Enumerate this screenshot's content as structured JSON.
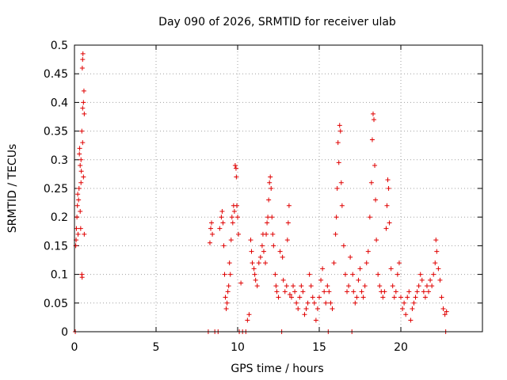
{
  "chart_data": {
    "type": "scatter",
    "title": "Day 090 of 2026, SRMTID for receiver ulab",
    "xlabel": "GPS time / hours",
    "ylabel": "SRMTID / TECUs",
    "xlim": [
      0,
      25
    ],
    "ylim": [
      0,
      0.5
    ],
    "x_ticks": [
      0,
      5,
      10,
      15,
      20
    ],
    "x_tick_labels": [
      "0",
      "5",
      "10",
      "15",
      "20"
    ],
    "y_ticks": [
      0,
      0.05,
      0.1,
      0.15,
      0.2,
      0.25,
      0.3,
      0.35,
      0.4,
      0.45,
      0.5
    ],
    "y_tick_labels": [
      "0",
      "0.05",
      "0.1",
      "0.15",
      "0.2",
      "0.25",
      "0.3",
      "0.35",
      "0.4",
      "0.45",
      "0.5"
    ],
    "grid": true,
    "marker": "+",
    "series": [
      {
        "name": "SRMTID",
        "color": "#e00000",
        "points": [
          [
            0.05,
            0
          ],
          [
            0.08,
            0.15
          ],
          [
            0.1,
            0.16
          ],
          [
            0.12,
            0.18
          ],
          [
            0.15,
            0.2
          ],
          [
            0.18,
            0.22
          ],
          [
            0.2,
            0.24
          ],
          [
            0.22,
            0.17
          ],
          [
            0.25,
            0.23
          ],
          [
            0.28,
            0.25
          ],
          [
            0.3,
            0.31
          ],
          [
            0.32,
            0.32
          ],
          [
            0.35,
            0.29
          ],
          [
            0.38,
            0.18
          ],
          [
            0.4,
            0.26
          ],
          [
            0.42,
            0.28
          ],
          [
            0.45,
            0.1
          ],
          [
            0.47,
            0.095
          ],
          [
            0.48,
            0.46
          ],
          [
            0.5,
            0.475
          ],
          [
            0.52,
            0.485
          ],
          [
            0.5,
            0.39
          ],
          [
            0.55,
            0.4
          ],
          [
            0.58,
            0.42
          ],
          [
            0.6,
            0.38
          ],
          [
            0.45,
            0.35
          ],
          [
            0.5,
            0.33
          ],
          [
            0.4,
            0.3
          ],
          [
            0.35,
            0.21
          ],
          [
            0.55,
            0.27
          ],
          [
            0.6,
            0.17
          ],
          [
            8.2,
            0
          ],
          [
            8.3,
            0.155
          ],
          [
            8.35,
            0.18
          ],
          [
            8.4,
            0.19
          ],
          [
            8.45,
            0.17
          ],
          [
            8.6,
            0
          ],
          [
            8.8,
            0
          ],
          [
            8.9,
            0.18
          ],
          [
            9.0,
            0.2
          ],
          [
            9.05,
            0.21
          ],
          [
            9.1,
            0.19
          ],
          [
            9.15,
            0.15
          ],
          [
            9.2,
            0.1
          ],
          [
            9.25,
            0.06
          ],
          [
            9.3,
            0.04
          ],
          [
            9.35,
            0.05
          ],
          [
            9.4,
            0.07
          ],
          [
            9.45,
            0.08
          ],
          [
            9.5,
            0.12
          ],
          [
            9.55,
            0.1
          ],
          [
            9.6,
            0.16
          ],
          [
            9.65,
            0.2
          ],
          [
            9.7,
            0.19
          ],
          [
            9.75,
            0.22
          ],
          [
            9.8,
            0.21
          ],
          [
            9.85,
            0.29
          ],
          [
            9.9,
            0.285
          ],
          [
            9.92,
            0.27
          ],
          [
            9.95,
            0.22
          ],
          [
            10.0,
            0.2
          ],
          [
            10.05,
            0.17
          ],
          [
            10.1,
            0
          ],
          [
            10.2,
            0.085
          ],
          [
            10.3,
            0
          ],
          [
            10.5,
            0
          ],
          [
            10.6,
            0.02
          ],
          [
            10.7,
            0.03
          ],
          [
            10.8,
            0.16
          ],
          [
            10.85,
            0.14
          ],
          [
            10.9,
            0.12
          ],
          [
            11.0,
            0.11
          ],
          [
            11.05,
            0.1
          ],
          [
            11.1,
            0.09
          ],
          [
            11.2,
            0.08
          ],
          [
            11.3,
            0.12
          ],
          [
            11.4,
            0.13
          ],
          [
            11.5,
            0.15
          ],
          [
            11.55,
            0.17
          ],
          [
            11.6,
            0.14
          ],
          [
            11.7,
            0.12
          ],
          [
            11.75,
            0.17
          ],
          [
            11.8,
            0.19
          ],
          [
            11.85,
            0.2
          ],
          [
            11.9,
            0.23
          ],
          [
            11.95,
            0.26
          ],
          [
            12.0,
            0.27
          ],
          [
            12.05,
            0.25
          ],
          [
            12.1,
            0.2
          ],
          [
            12.15,
            0.17
          ],
          [
            12.2,
            0.15
          ],
          [
            12.3,
            0.1
          ],
          [
            12.35,
            0.08
          ],
          [
            12.4,
            0.07
          ],
          [
            12.5,
            0.06
          ],
          [
            12.6,
            0.14
          ],
          [
            12.7,
            0
          ],
          [
            12.75,
            0.13
          ],
          [
            12.8,
            0.09
          ],
          [
            12.9,
            0.07
          ],
          [
            13.0,
            0.08
          ],
          [
            13.05,
            0.16
          ],
          [
            13.1,
            0.19
          ],
          [
            13.15,
            0.22
          ],
          [
            13.2,
            0.065
          ],
          [
            13.3,
            0.06
          ],
          [
            13.4,
            0.08
          ],
          [
            13.5,
            0.07
          ],
          [
            13.6,
            0.05
          ],
          [
            13.7,
            0.04
          ],
          [
            13.8,
            0.06
          ],
          [
            13.9,
            0.08
          ],
          [
            14.0,
            0.07
          ],
          [
            14.1,
            0.03
          ],
          [
            14.2,
            0.04
          ],
          [
            14.3,
            0.05
          ],
          [
            14.4,
            0.1
          ],
          [
            14.5,
            0.08
          ],
          [
            14.6,
            0.06
          ],
          [
            14.7,
            0.05
          ],
          [
            14.8,
            0.02
          ],
          [
            14.9,
            0.04
          ],
          [
            15.0,
            0.06
          ],
          [
            15.1,
            0.09
          ],
          [
            15.2,
            0.11
          ],
          [
            15.3,
            0.07
          ],
          [
            15.4,
            0.05
          ],
          [
            15.5,
            0.08
          ],
          [
            15.55,
            0
          ],
          [
            15.6,
            0.07
          ],
          [
            15.7,
            0.05
          ],
          [
            15.8,
            0.04
          ],
          [
            15.9,
            0.12
          ],
          [
            16.0,
            0.17
          ],
          [
            16.05,
            0.2
          ],
          [
            16.1,
            0.25
          ],
          [
            16.15,
            0.33
          ],
          [
            16.2,
            0.295
          ],
          [
            16.25,
            0.36
          ],
          [
            16.3,
            0.35
          ],
          [
            16.35,
            0.26
          ],
          [
            16.4,
            0.22
          ],
          [
            16.5,
            0.15
          ],
          [
            16.6,
            0.1
          ],
          [
            16.7,
            0.07
          ],
          [
            16.8,
            0.08
          ],
          [
            16.9,
            0.13
          ],
          [
            17.0,
            0
          ],
          [
            17.05,
            0.1
          ],
          [
            17.1,
            0.07
          ],
          [
            17.2,
            0.05
          ],
          [
            17.3,
            0.06
          ],
          [
            17.4,
            0.09
          ],
          [
            17.5,
            0.11
          ],
          [
            17.6,
            0.07
          ],
          [
            17.7,
            0.06
          ],
          [
            17.8,
            0.08
          ],
          [
            17.9,
            0.12
          ],
          [
            18.0,
            0.14
          ],
          [
            18.1,
            0.2
          ],
          [
            18.2,
            0.26
          ],
          [
            18.25,
            0.335
          ],
          [
            18.3,
            0.38
          ],
          [
            18.35,
            0.37
          ],
          [
            18.4,
            0.29
          ],
          [
            18.45,
            0.23
          ],
          [
            18.5,
            0.16
          ],
          [
            18.6,
            0.1
          ],
          [
            18.7,
            0.08
          ],
          [
            18.8,
            0.07
          ],
          [
            18.9,
            0.06
          ],
          [
            19.0,
            0.07
          ],
          [
            19.1,
            0.18
          ],
          [
            19.15,
            0.22
          ],
          [
            19.2,
            0.265
          ],
          [
            19.25,
            0.25
          ],
          [
            19.3,
            0.19
          ],
          [
            19.4,
            0.11
          ],
          [
            19.5,
            0.08
          ],
          [
            19.6,
            0.06
          ],
          [
            19.7,
            0.07
          ],
          [
            19.8,
            0.1
          ],
          [
            19.9,
            0.12
          ],
          [
            20.0,
            0.06
          ],
          [
            20.1,
            0.04
          ],
          [
            20.2,
            0.05
          ],
          [
            20.3,
            0.03
          ],
          [
            20.4,
            0.06
          ],
          [
            20.5,
            0.07
          ],
          [
            20.6,
            0.02
          ],
          [
            20.7,
            0.04
          ],
          [
            20.8,
            0.05
          ],
          [
            20.9,
            0.06
          ],
          [
            21.0,
            0.07
          ],
          [
            21.1,
            0.08
          ],
          [
            21.2,
            0.1
          ],
          [
            21.3,
            0.09
          ],
          [
            21.4,
            0.07
          ],
          [
            21.5,
            0.06
          ],
          [
            21.6,
            0.08
          ],
          [
            21.7,
            0.07
          ],
          [
            21.8,
            0.09
          ],
          [
            21.9,
            0.08
          ],
          [
            22.0,
            0.1
          ],
          [
            22.1,
            0.12
          ],
          [
            22.15,
            0.16
          ],
          [
            22.2,
            0.14
          ],
          [
            22.3,
            0.11
          ],
          [
            22.4,
            0.09
          ],
          [
            22.5,
            0.06
          ],
          [
            22.6,
            0.04
          ],
          [
            22.7,
            0.03
          ],
          [
            22.75,
            0
          ],
          [
            22.8,
            0.035
          ]
        ]
      }
    ]
  }
}
